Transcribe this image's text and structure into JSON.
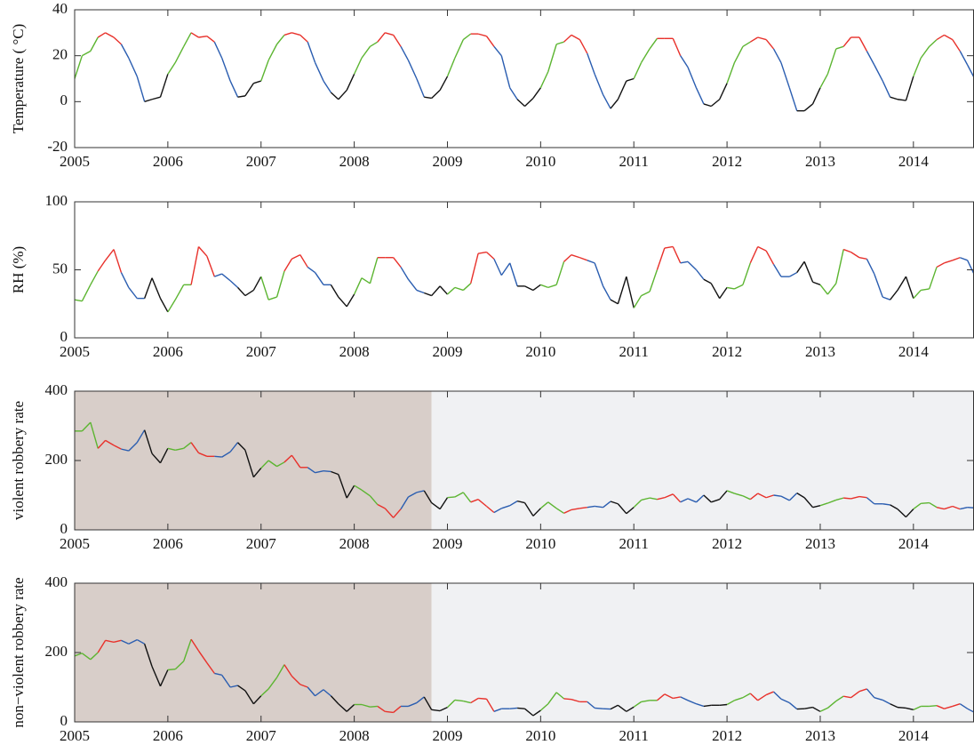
{
  "chart_data": [
    {
      "type": "line",
      "y_label": "Temperature ( °C)",
      "xlim": [
        2005,
        2014.65
      ],
      "ylim": [
        -20,
        40
      ],
      "yticks": [
        -20,
        0,
        20,
        40
      ],
      "xticks": [
        2005,
        2006,
        2007,
        2008,
        2009,
        2010,
        2011,
        2012,
        2013,
        2014
      ],
      "season_colors": [
        "#5cb531",
        "#e8312b",
        "#2a5db0",
        "#111111"
      ],
      "x": [
        2005,
        2005.08,
        2005.17,
        2005.25,
        2005.33,
        2005.42,
        2005.5,
        2005.58,
        2005.67,
        2005.75,
        2005.83,
        2005.92,
        2006,
        2006.08,
        2006.17,
        2006.25,
        2006.33,
        2006.42,
        2006.5,
        2006.58,
        2006.67,
        2006.75,
        2006.83,
        2006.92,
        2007,
        2007.08,
        2007.17,
        2007.25,
        2007.33,
        2007.42,
        2007.5,
        2007.58,
        2007.67,
        2007.75,
        2007.83,
        2007.92,
        2008,
        2008.08,
        2008.17,
        2008.25,
        2008.33,
        2008.42,
        2008.5,
        2008.58,
        2008.67,
        2008.75,
        2008.83,
        2008.92,
        2009,
        2009.08,
        2009.17,
        2009.25,
        2009.33,
        2009.42,
        2009.5,
        2009.58,
        2009.67,
        2009.75,
        2009.83,
        2009.92,
        2010,
        2010.08,
        2010.17,
        2010.25,
        2010.33,
        2010.42,
        2010.5,
        2010.58,
        2010.67,
        2010.75,
        2010.83,
        2010.92,
        2011,
        2011.08,
        2011.17,
        2011.25,
        2011.33,
        2011.42,
        2011.5,
        2011.58,
        2011.67,
        2011.75,
        2011.83,
        2011.92,
        2012,
        2012.08,
        2012.17,
        2012.25,
        2012.33,
        2012.42,
        2012.5,
        2012.58,
        2012.67,
        2012.75,
        2012.83,
        2012.92,
        2013,
        2013.08,
        2013.17,
        2013.25,
        2013.33,
        2013.42,
        2013.5,
        2013.58,
        2013.67,
        2013.75,
        2013.83,
        2013.92,
        2014,
        2014.08,
        2014.17,
        2014.25,
        2014.33,
        2014.42,
        2014.5,
        2014.58,
        2014.67
      ],
      "values": [
        10,
        20,
        22,
        28,
        30,
        28,
        25,
        19,
        11,
        0,
        1,
        2,
        12,
        17,
        24,
        30,
        28,
        28.5,
        26,
        19,
        9,
        2,
        2.5,
        8,
        9,
        18,
        25,
        29,
        30,
        29,
        26,
        17,
        9,
        4,
        1,
        5,
        12,
        19,
        24,
        26,
        30,
        29,
        24,
        18,
        10,
        2,
        1.5,
        5,
        11,
        19,
        27,
        29.5,
        29.5,
        28.5,
        24,
        20,
        6,
        1,
        -2,
        1.5,
        6,
        13,
        25,
        26,
        29,
        27,
        21,
        12,
        3,
        -3,
        1,
        9,
        10,
        17,
        23,
        27.5,
        27.5,
        27.5,
        20,
        15,
        6,
        -1,
        -2,
        1,
        8,
        17,
        24,
        26,
        28,
        27,
        23,
        17,
        6,
        -4,
        -4,
        -1,
        6,
        12,
        23,
        24,
        28,
        28,
        22,
        16,
        9,
        2,
        1,
        0.5,
        11,
        19,
        24,
        27,
        29,
        27,
        22,
        16,
        9
      ]
    },
    {
      "type": "line",
      "y_label": "RH (%)",
      "xlim": [
        2005,
        2014.65
      ],
      "ylim": [
        0,
        100
      ],
      "yticks": [
        0,
        50,
        100
      ],
      "xticks": [
        2005,
        2006,
        2007,
        2008,
        2009,
        2010,
        2011,
        2012,
        2013,
        2014
      ],
      "season_colors": [
        "#5cb531",
        "#e8312b",
        "#2a5db0",
        "#111111"
      ],
      "x": [
        2005,
        2005.08,
        2005.17,
        2005.25,
        2005.33,
        2005.42,
        2005.5,
        2005.58,
        2005.67,
        2005.75,
        2005.83,
        2005.92,
        2006,
        2006.08,
        2006.17,
        2006.25,
        2006.33,
        2006.42,
        2006.5,
        2006.58,
        2006.67,
        2006.75,
        2006.83,
        2006.92,
        2007,
        2007.08,
        2007.17,
        2007.25,
        2007.33,
        2007.42,
        2007.5,
        2007.58,
        2007.67,
        2007.75,
        2007.83,
        2007.92,
        2008,
        2008.08,
        2008.17,
        2008.25,
        2008.33,
        2008.42,
        2008.5,
        2008.58,
        2008.67,
        2008.75,
        2008.83,
        2008.92,
        2009,
        2009.08,
        2009.17,
        2009.25,
        2009.33,
        2009.42,
        2009.5,
        2009.58,
        2009.67,
        2009.75,
        2009.83,
        2009.92,
        2010,
        2010.08,
        2010.17,
        2010.25,
        2010.33,
        2010.42,
        2010.5,
        2010.58,
        2010.67,
        2010.75,
        2010.83,
        2010.92,
        2011,
        2011.08,
        2011.17,
        2011.25,
        2011.33,
        2011.42,
        2011.5,
        2011.58,
        2011.67,
        2011.75,
        2011.83,
        2011.92,
        2012,
        2012.08,
        2012.17,
        2012.25,
        2012.33,
        2012.42,
        2012.5,
        2012.58,
        2012.67,
        2012.75,
        2012.83,
        2012.92,
        2013,
        2013.08,
        2013.17,
        2013.25,
        2013.33,
        2013.42,
        2013.5,
        2013.58,
        2013.67,
        2013.75,
        2013.83,
        2013.92,
        2014,
        2014.08,
        2014.17,
        2014.25,
        2014.33,
        2014.42,
        2014.5,
        2014.58,
        2014.67
      ],
      "values": [
        28,
        27,
        39,
        49,
        57,
        65,
        48,
        37,
        29,
        29,
        44,
        29,
        19,
        28,
        39,
        39,
        67,
        60,
        45,
        47,
        42,
        37,
        31,
        35,
        45,
        28,
        30,
        49,
        58,
        61,
        52,
        48,
        39,
        39,
        30,
        23,
        32,
        44,
        40,
        59,
        59,
        59,
        52,
        43,
        35,
        33,
        31,
        38,
        32,
        37,
        35,
        40,
        62,
        63,
        58,
        46,
        55,
        38,
        38,
        35,
        39,
        37,
        39,
        56,
        61,
        59,
        57,
        55,
        38,
        28,
        25,
        45,
        22,
        31,
        34,
        50,
        66,
        67,
        55,
        56,
        50,
        43,
        40,
        29,
        37,
        36,
        39,
        55,
        67,
        64,
        54,
        45,
        45,
        48,
        56,
        41,
        39,
        32,
        40,
        65,
        63,
        59,
        58,
        47,
        30,
        28,
        35,
        45,
        29,
        35,
        36,
        52,
        55,
        57,
        59,
        57,
        44
      ]
    },
    {
      "type": "line",
      "y_label": "violent robbery rate",
      "xlim": [
        2005,
        2014.65
      ],
      "ylim": [
        0,
        400
      ],
      "yticks": [
        0,
        200,
        400
      ],
      "xticks": [
        2005,
        2006,
        2007,
        2008,
        2009,
        2010,
        2011,
        2012,
        2013,
        2014
      ],
      "season_colors": [
        "#5cb531",
        "#e8312b",
        "#2a5db0",
        "#111111"
      ],
      "regions": [
        {
          "xlim": [
            2005,
            2008.83
          ],
          "color": "#d8cec9"
        },
        {
          "xlim": [
            2008.83,
            2014.65
          ],
          "color": "#f0f1f3"
        }
      ],
      "x": [
        2005,
        2005.08,
        2005.17,
        2005.25,
        2005.33,
        2005.42,
        2005.5,
        2005.58,
        2005.67,
        2005.75,
        2005.83,
        2005.92,
        2006,
        2006.08,
        2006.17,
        2006.25,
        2006.33,
        2006.42,
        2006.5,
        2006.58,
        2006.67,
        2006.75,
        2006.83,
        2006.92,
        2007,
        2007.08,
        2007.17,
        2007.25,
        2007.33,
        2007.42,
        2007.5,
        2007.58,
        2007.67,
        2007.75,
        2007.83,
        2007.92,
        2008,
        2008.08,
        2008.17,
        2008.25,
        2008.33,
        2008.42,
        2008.5,
        2008.58,
        2008.67,
        2008.75,
        2008.83,
        2008.92,
        2009,
        2009.08,
        2009.17,
        2009.25,
        2009.33,
        2009.42,
        2009.5,
        2009.58,
        2009.67,
        2009.75,
        2009.83,
        2009.92,
        2010,
        2010.08,
        2010.17,
        2010.25,
        2010.33,
        2010.42,
        2010.5,
        2010.58,
        2010.67,
        2010.75,
        2010.83,
        2010.92,
        2011,
        2011.08,
        2011.17,
        2011.25,
        2011.33,
        2011.42,
        2011.5,
        2011.58,
        2011.67,
        2011.75,
        2011.83,
        2011.92,
        2012,
        2012.08,
        2012.17,
        2012.25,
        2012.33,
        2012.42,
        2012.5,
        2012.58,
        2012.67,
        2012.75,
        2012.83,
        2012.92,
        2013,
        2013.08,
        2013.17,
        2013.25,
        2013.33,
        2013.42,
        2013.5,
        2013.58,
        2013.67,
        2013.75,
        2013.83,
        2013.92,
        2014,
        2014.08,
        2014.17,
        2014.25,
        2014.33,
        2014.42,
        2014.5,
        2014.58,
        2014.67
      ],
      "values": [
        285,
        285,
        310,
        235,
        258,
        244,
        233,
        228,
        252,
        288,
        220,
        193,
        235,
        230,
        235,
        252,
        222,
        212,
        212,
        210,
        225,
        252,
        230,
        152,
        178,
        200,
        183,
        195,
        215,
        180,
        180,
        165,
        170,
        168,
        160,
        92,
        128,
        115,
        98,
        73,
        62,
        35,
        60,
        95,
        108,
        113,
        78,
        60,
        93,
        95,
        108,
        80,
        88,
        68,
        50,
        62,
        70,
        83,
        78,
        40,
        62,
        80,
        62,
        48,
        58,
        62,
        65,
        68,
        65,
        82,
        75,
        47,
        65,
        86,
        92,
        88,
        93,
        103,
        80,
        90,
        80,
        100,
        80,
        88,
        113,
        105,
        98,
        88,
        105,
        93,
        100,
        97,
        85,
        106,
        93,
        65,
        70,
        77,
        86,
        92,
        90,
        96,
        93,
        75,
        75,
        72,
        60,
        37,
        60,
        76,
        78,
        65,
        60,
        68,
        60,
        65,
        63
      ]
    },
    {
      "type": "line",
      "y_label": "non−violent robbery rate",
      "xlim": [
        2005,
        2014.65
      ],
      "ylim": [
        0,
        400
      ],
      "yticks": [
        0,
        200,
        400
      ],
      "xticks": [
        2005,
        2006,
        2007,
        2008,
        2009,
        2010,
        2011,
        2012,
        2013,
        2014
      ],
      "season_colors": [
        "#5cb531",
        "#e8312b",
        "#2a5db0",
        "#111111"
      ],
      "regions": [
        {
          "xlim": [
            2005,
            2008.83
          ],
          "color": "#d8cec9"
        },
        {
          "xlim": [
            2008.83,
            2014.65
          ],
          "color": "#f0f1f3"
        }
      ],
      "x": [
        2005,
        2005.08,
        2005.17,
        2005.25,
        2005.33,
        2005.42,
        2005.5,
        2005.58,
        2005.67,
        2005.75,
        2005.83,
        2005.92,
        2006,
        2006.08,
        2006.17,
        2006.25,
        2006.33,
        2006.42,
        2006.5,
        2006.58,
        2006.67,
        2006.75,
        2006.83,
        2006.92,
        2007,
        2007.08,
        2007.17,
        2007.25,
        2007.33,
        2007.42,
        2007.5,
        2007.58,
        2007.67,
        2007.75,
        2007.83,
        2007.92,
        2008,
        2008.08,
        2008.17,
        2008.25,
        2008.33,
        2008.42,
        2008.5,
        2008.58,
        2008.67,
        2008.75,
        2008.83,
        2008.92,
        2009,
        2009.08,
        2009.17,
        2009.25,
        2009.33,
        2009.42,
        2009.5,
        2009.58,
        2009.67,
        2009.75,
        2009.83,
        2009.92,
        2010,
        2010.08,
        2010.17,
        2010.25,
        2010.33,
        2010.42,
        2010.5,
        2010.58,
        2010.67,
        2010.75,
        2010.83,
        2010.92,
        2011,
        2011.08,
        2011.17,
        2011.25,
        2011.33,
        2011.42,
        2011.5,
        2011.58,
        2011.67,
        2011.75,
        2011.83,
        2011.92,
        2012,
        2012.08,
        2012.17,
        2012.25,
        2012.33,
        2012.42,
        2012.5,
        2012.58,
        2012.67,
        2012.75,
        2012.83,
        2012.92,
        2013,
        2013.08,
        2013.17,
        2013.25,
        2013.33,
        2013.42,
        2013.5,
        2013.58,
        2013.67,
        2013.75,
        2013.83,
        2013.92,
        2014,
        2014.08,
        2014.17,
        2014.25,
        2014.33,
        2014.42,
        2014.5,
        2014.58,
        2014.67
      ],
      "values": [
        190,
        198,
        180,
        200,
        235,
        230,
        235,
        225,
        237,
        225,
        160,
        103,
        150,
        152,
        175,
        238,
        205,
        170,
        140,
        135,
        100,
        105,
        90,
        52,
        75,
        95,
        128,
        165,
        132,
        108,
        100,
        75,
        93,
        75,
        52,
        30,
        50,
        50,
        43,
        45,
        30,
        27,
        45,
        45,
        55,
        72,
        35,
        32,
        42,
        63,
        60,
        55,
        68,
        66,
        30,
        38,
        38,
        40,
        38,
        18,
        33,
        52,
        85,
        67,
        65,
        58,
        58,
        40,
        38,
        37,
        48,
        30,
        43,
        58,
        62,
        62,
        80,
        68,
        72,
        62,
        52,
        45,
        48,
        48,
        50,
        62,
        70,
        82,
        62,
        78,
        87,
        66,
        55,
        37,
        38,
        42,
        30,
        40,
        60,
        74,
        70,
        88,
        95,
        70,
        63,
        52,
        42,
        40,
        35,
        45,
        45,
        47,
        38,
        45,
        52,
        38,
        25
      ]
    }
  ]
}
